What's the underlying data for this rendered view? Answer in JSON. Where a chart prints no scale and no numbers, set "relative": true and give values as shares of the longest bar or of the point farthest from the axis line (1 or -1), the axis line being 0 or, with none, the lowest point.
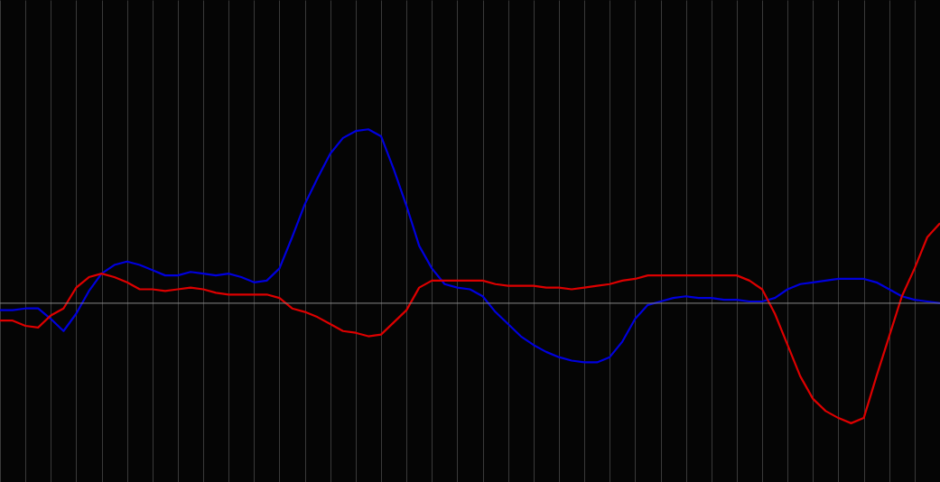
{
  "chart_data": {
    "type": "line",
    "relative": true,
    "grid": true,
    "categories": [
      null,
      null,
      null,
      null,
      null,
      null,
      null,
      null,
      null,
      null,
      null,
      null,
      null,
      null,
      null,
      null,
      null,
      null,
      null,
      null,
      null,
      null,
      null,
      null,
      null,
      null,
      null,
      null,
      null,
      null,
      null,
      null,
      null,
      null,
      null,
      null,
      null,
      null,
      null,
      null,
      null,
      null,
      null,
      null,
      null,
      null,
      null,
      null,
      null,
      null,
      null,
      null,
      null,
      null,
      null,
      null,
      null,
      null,
      null,
      null,
      null,
      null,
      null,
      null,
      null,
      null,
      null,
      null,
      null,
      null,
      null,
      null,
      null,
      null,
      null
    ],
    "series": [
      {
        "color": "#0000dd",
        "values": [
          -0.04,
          -0.04,
          -0.03,
          -0.03,
          -0.09,
          -0.16,
          -0.06,
          0.07,
          0.17,
          0.22,
          0.24,
          0.22,
          0.19,
          0.16,
          0.16,
          0.18,
          0.17,
          0.16,
          0.17,
          0.15,
          0.12,
          0.13,
          0.2,
          0.38,
          0.57,
          0.72,
          0.86,
          0.95,
          0.99,
          1.0,
          0.96,
          0.77,
          0.56,
          0.33,
          0.2,
          0.11,
          0.09,
          0.08,
          0.04,
          -0.05,
          -0.12,
          -0.19,
          -0.24,
          -0.28,
          -0.31,
          -0.33,
          -0.34,
          -0.34,
          -0.31,
          -0.22,
          -0.09,
          -0.01,
          0.01,
          0.03,
          0.04,
          0.03,
          0.03,
          0.02,
          0.02,
          0.01,
          0.01,
          0.03,
          0.08,
          0.11,
          0.12,
          0.13,
          0.14,
          0.14,
          0.14,
          0.12,
          0.08,
          0.04,
          0.02,
          0.01,
          0
        ]
      },
      {
        "color": "#dd0000",
        "values": [
          -0.1,
          -0.1,
          -0.13,
          -0.14,
          -0.07,
          -0.03,
          0.09,
          0.15,
          0.17,
          0.15,
          0.12,
          0.08,
          0.08,
          0.07,
          0.08,
          0.09,
          0.08,
          0.06,
          0.05,
          0.05,
          0.05,
          0.05,
          0.03,
          -0.03,
          -0.05,
          -0.08,
          -0.12,
          -0.16,
          -0.17,
          -0.19,
          -0.18,
          -0.11,
          -0.04,
          0.09,
          0.13,
          0.13,
          0.13,
          0.13,
          0.13,
          0.11,
          0.1,
          0.1,
          0.1,
          0.09,
          0.09,
          0.08,
          0.09,
          0.1,
          0.11,
          0.13,
          0.14,
          0.16,
          0.16,
          0.16,
          0.16,
          0.16,
          0.16,
          0.16,
          0.16,
          0.13,
          0.08,
          -0.06,
          -0.24,
          -0.42,
          -0.55,
          -0.62,
          -0.66,
          -0.69,
          -0.66,
          -0.42,
          -0.19,
          0.04,
          0.2,
          0.38,
          0.46
        ]
      }
    ]
  }
}
